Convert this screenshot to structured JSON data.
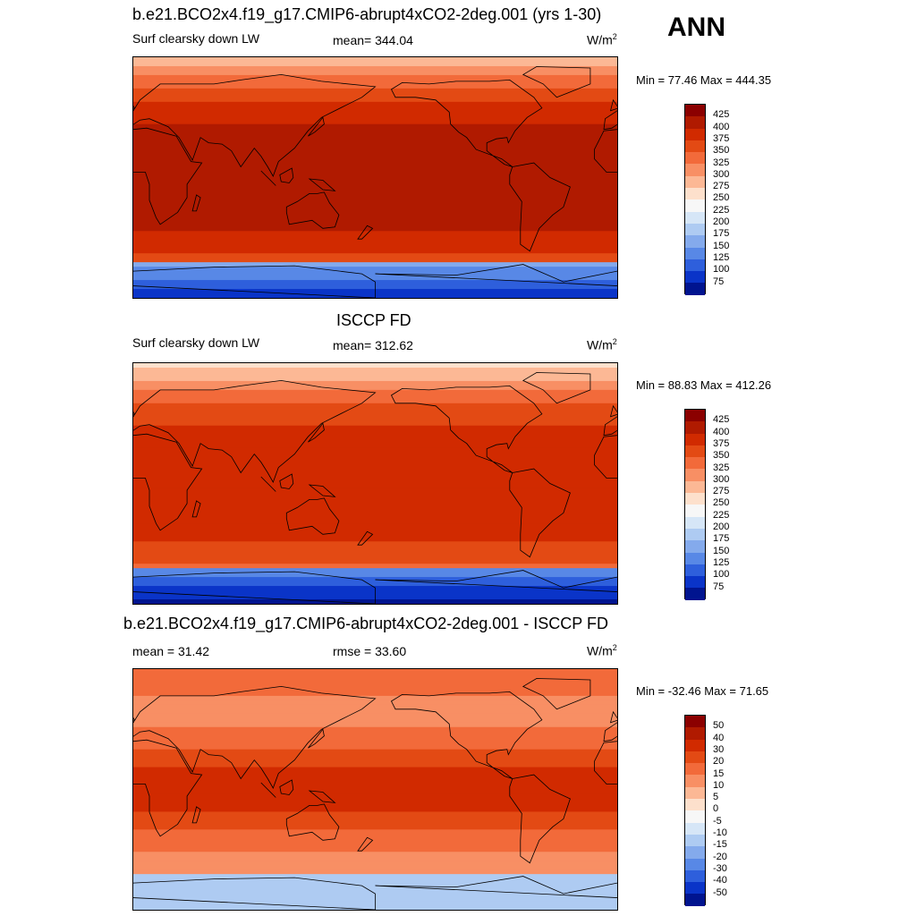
{
  "season": "ANN",
  "panels": [
    {
      "id": "model",
      "title": "b.e21.BCO2x4.f19_g17.CMIP6-abrupt4xCO2-2deg.001 (yrs 1-30)",
      "left_label": "Surf clearsky down LW",
      "center_label": "mean= 344.04",
      "units": "W/m",
      "units_sup": "2",
      "minmax": "Min =  77.46 Max = 444.35",
      "colorbar_labels": [
        "425",
        "400",
        "375",
        "350",
        "325",
        "300",
        "275",
        "250",
        "225",
        "200",
        "175",
        "150",
        "125",
        "100",
        "75"
      ]
    },
    {
      "id": "obs",
      "title": "ISCCP FD",
      "left_label": "Surf clearsky down LW",
      "center_label": "mean= 312.62",
      "units": "W/m",
      "units_sup": "2",
      "minmax": "Min =  88.83 Max = 412.26",
      "colorbar_labels": [
        "425",
        "400",
        "375",
        "350",
        "325",
        "300",
        "275",
        "250",
        "225",
        "200",
        "175",
        "150",
        "125",
        "100",
        "75"
      ]
    },
    {
      "id": "diff",
      "title": "b.e21.BCO2x4.f19_g17.CMIP6-abrupt4xCO2-2deg.001 - ISCCP FD",
      "left_label": "mean =  31.42",
      "center_label": "rmse =  33.60",
      "units": "W/m",
      "units_sup": "2",
      "minmax": "Min = -32.46 Max =  71.65",
      "colorbar_labels": [
        "50",
        "40",
        "30",
        "20",
        "15",
        "10",
        "5",
        "0",
        "-5",
        "-10",
        "-15",
        "-20",
        "-30",
        "-40",
        "-50"
      ]
    }
  ],
  "colors": {
    "scale": [
      "#8b0000",
      "#b01a00",
      "#d12a00",
      "#e34a14",
      "#f26a3a",
      "#f88f64",
      "#fcb895",
      "#fde0cc",
      "#f7f7f7",
      "#d6e6f7",
      "#aecbf2",
      "#84aaec",
      "#5888e6",
      "#2e5fdc",
      "#0a34c8",
      "#00148f"
    ]
  }
}
